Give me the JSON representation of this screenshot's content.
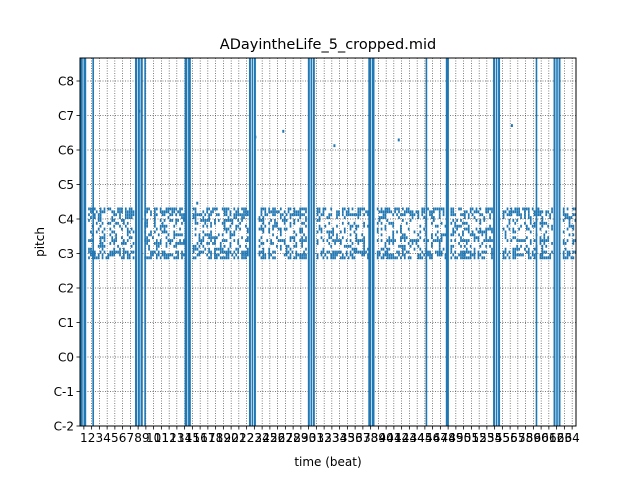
{
  "chart_data": {
    "type": "heatmap",
    "title": "ADayintheLife_5_cropped.mid",
    "xlabel": "time (beat)",
    "ylabel": "pitch",
    "xlim": [
      0.5,
      64.5
    ],
    "ylim": [
      0,
      128
    ],
    "x_ticks": [
      1,
      2,
      3,
      4,
      5,
      6,
      7,
      8,
      9,
      10,
      11,
      12,
      13,
      14,
      15,
      16,
      17,
      18,
      19,
      20,
      21,
      22,
      23,
      24,
      25,
      26,
      27,
      28,
      29,
      30,
      31,
      32,
      33,
      34,
      35,
      36,
      37,
      38,
      39,
      40,
      41,
      42,
      43,
      44,
      45,
      46,
      47,
      48,
      49,
      50,
      51,
      52,
      53,
      54,
      55,
      56,
      57,
      58,
      59,
      60,
      61,
      62,
      63,
      64
    ],
    "y_ticks": [
      {
        "label": "C-2",
        "value": 0
      },
      {
        "label": "C-1",
        "value": 12
      },
      {
        "label": "C0",
        "value": 24
      },
      {
        "label": "C1",
        "value": 36
      },
      {
        "label": "C2",
        "value": 48
      },
      {
        "label": "C3",
        "value": 60
      },
      {
        "label": "C4",
        "value": 72
      },
      {
        "label": "C5",
        "value": 84
      },
      {
        "label": "C6",
        "value": 96
      },
      {
        "label": "C7",
        "value": 108
      },
      {
        "label": "C8",
        "value": 120
      }
    ],
    "grid": true,
    "note_color": "#1f77b4",
    "full_range_chords": [
      {
        "start": 0.5,
        "end": 1.3
      },
      {
        "start": 7.6,
        "end": 8.6
      },
      {
        "start": 14.0,
        "end": 14.8
      },
      {
        "start": 22.3,
        "end": 23.2
      },
      {
        "start": 29.9,
        "end": 30.8
      },
      {
        "start": 37.7,
        "end": 38.5
      },
      {
        "start": 47.7,
        "end": 48.1
      },
      {
        "start": 53.8,
        "end": 54.7
      },
      {
        "start": 61.6,
        "end": 62.5
      }
    ],
    "sparse_vertical_lines": [
      2.2,
      8.9,
      45.2,
      59.4
    ],
    "melodic_band": {
      "pitch_low": 58,
      "pitch_high": 75,
      "start": 1.3,
      "end": 64.5
    },
    "high_register_notes": [
      {
        "beat": 8.0,
        "pitch": 109
      },
      {
        "beat": 15.5,
        "pitch": 77
      },
      {
        "beat": 23.0,
        "pitch": 100
      },
      {
        "beat": 26.6,
        "pitch": 102
      },
      {
        "beat": 33.2,
        "pitch": 97
      },
      {
        "beat": 41.5,
        "pitch": 99
      },
      {
        "beat": 56.1,
        "pitch": 104
      }
    ]
  }
}
